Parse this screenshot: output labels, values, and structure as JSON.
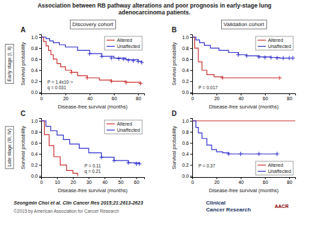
{
  "title": "Association between RB pathway alterations and poor prognosis in early-stage lung\nadenocarcinoma patients.",
  "column_labels": [
    "Discovery cohort",
    "Validation cohort"
  ],
  "row_labels": [
    "Early stage (I, II)",
    "Late stage (III, IV)"
  ],
  "annotations": [
    "Seongmin Choi et al. Clin Cancer Res 2015;21:2613-2623",
    "©2015 by American Association for Cancer Research",
    "Clinical\nCancer Research",
    "AACR"
  ],
  "chart_data": [
    {
      "type": "line",
      "title": "A",
      "xlabel": "Disease-free survival (months)",
      "ylabel": "Survival probability",
      "annotations": [
        "P = 1.4x10⁻³\nq = 0.031"
      ],
      "legend": "upper right",
      "xlim": [
        0,
        85
      ],
      "ylim": [
        -0.02,
        1.05
      ],
      "xticks": [
        0,
        20,
        40,
        60,
        80
      ],
      "yticks": [
        {
          "value": 0.0,
          "label": "0.0"
        },
        0.2,
        0.4,
        0.6,
        0.8,
        {
          "value": 1.0,
          "label": "1.0"
        }
      ],
      "series": [
        {
          "name": "Altered",
          "color": "#cc3333",
          "line_style": "step",
          "x": [
            0,
            2,
            4,
            6,
            8,
            10,
            13,
            16,
            20,
            25,
            30,
            38,
            48,
            58,
            70,
            82
          ],
          "values": [
            1.0,
            0.92,
            0.84,
            0.76,
            0.68,
            0.6,
            0.52,
            0.46,
            0.4,
            0.36,
            0.3,
            0.26,
            0.22,
            0.2,
            0.18,
            0.16
          ],
          "censor_x": [
            25,
            38,
            58,
            70,
            82
          ],
          "censor_values": [
            0.36,
            0.26,
            0.2,
            0.18,
            0.16
          ]
        },
        {
          "name": "Unaffected",
          "color": "#3333cc",
          "line_style": "step",
          "x": [
            0,
            4,
            7,
            10,
            15,
            20,
            30,
            40,
            50,
            60,
            70,
            80,
            83
          ],
          "values": [
            1.0,
            0.97,
            0.93,
            0.9,
            0.86,
            0.82,
            0.76,
            0.7,
            0.65,
            0.62,
            0.59,
            0.56,
            0.54
          ],
          "censor_x": [
            40,
            50,
            58,
            64,
            68,
            72,
            76,
            80,
            83
          ],
          "censor_values": [
            0.7,
            0.65,
            0.62,
            0.61,
            0.6,
            0.58,
            0.57,
            0.56,
            0.54
          ]
        }
      ]
    },
    {
      "type": "line",
      "title": "B",
      "xlabel": "Disease-free survival (months)",
      "ylabel": "Survival probability",
      "annotations": [
        "P = 0.017"
      ],
      "legend": "upper right",
      "xlim": [
        0,
        85
      ],
      "ylim": [
        -0.02,
        1.05
      ],
      "xticks": [
        0,
        20,
        40,
        60,
        80
      ],
      "yticks": [
        {
          "value": 0.0,
          "label": "0.0"
        },
        0.2,
        0.4,
        0.6,
        0.8,
        {
          "value": 1.0,
          "label": "1.0"
        }
      ],
      "series": [
        {
          "name": "Altered",
          "color": "#cc3333",
          "line_style": "step",
          "x": [
            0,
            2,
            5,
            8,
            12,
            18,
            25,
            65,
            72
          ],
          "values": [
            1.0,
            0.8,
            0.55,
            0.4,
            0.32,
            0.28,
            0.26,
            0.26,
            0.26
          ],
          "censor_x": [
            25,
            72
          ],
          "censor_values": [
            0.26,
            0.26
          ]
        },
        {
          "name": "Unaffected",
          "color": "#3333cc",
          "line_style": "step",
          "x": [
            0,
            3,
            6,
            10,
            15,
            22,
            30,
            38,
            45,
            55,
            65,
            72,
            80,
            83
          ],
          "values": [
            1.0,
            0.95,
            0.9,
            0.85,
            0.8,
            0.76,
            0.72,
            0.68,
            0.66,
            0.64,
            0.63,
            0.62,
            0.62,
            0.62
          ],
          "censor_x": [
            38,
            45,
            55,
            60,
            65,
            70,
            75,
            80,
            83
          ],
          "censor_values": [
            0.68,
            0.66,
            0.64,
            0.63,
            0.63,
            0.62,
            0.62,
            0.62,
            0.62
          ]
        }
      ]
    },
    {
      "type": "line",
      "title": "C",
      "xlabel": "Disease-free survival (months)",
      "ylabel": "Survival probability",
      "annotations": [
        "P = 0.11\nq = 0.21"
      ],
      "legend": "upper right",
      "xlim": [
        0,
        65
      ],
      "ylim": [
        -0.02,
        1.05
      ],
      "xticks": [
        0,
        10,
        20,
        30,
        40,
        50,
        60
      ],
      "yticks": [
        {
          "value": 0.0,
          "label": "0.0"
        },
        0.2,
        0.4,
        0.6,
        0.8,
        {
          "value": 1.0,
          "label": "1.0"
        }
      ],
      "series": [
        {
          "name": "Altered",
          "color": "#cc3333",
          "line_style": "step",
          "x": [
            0,
            2,
            5,
            8,
            12,
            16,
            20,
            23
          ],
          "values": [
            1.0,
            0.75,
            0.55,
            0.35,
            0.2,
            0.1,
            0.05,
            0.0
          ],
          "censor_x": [],
          "censor_values": []
        },
        {
          "name": "Unaffected",
          "color": "#3333cc",
          "line_style": "step",
          "x": [
            0,
            3,
            6,
            10,
            14,
            18,
            24,
            30,
            38,
            46,
            55,
            62
          ],
          "values": [
            1.0,
            0.9,
            0.82,
            0.74,
            0.66,
            0.58,
            0.5,
            0.42,
            0.34,
            0.28,
            0.24,
            0.22
          ],
          "censor_x": [
            38,
            46,
            55,
            60,
            62
          ],
          "censor_values": [
            0.34,
            0.28,
            0.24,
            0.22,
            0.22
          ]
        }
      ]
    },
    {
      "type": "line",
      "title": "D",
      "xlabel": "Disease-free survival (months)",
      "ylabel": "Survival probability",
      "annotations": [
        "P = 0.37"
      ],
      "legend": "lower right",
      "xlim": [
        0,
        85
      ],
      "ylim": [
        -0.02,
        1.05
      ],
      "xticks": [
        0,
        20,
        40,
        60,
        80
      ],
      "yticks": [
        {
          "value": 0.0,
          "label": "0.0"
        },
        0.2,
        0.4,
        0.6,
        0.8,
        {
          "value": 1.0,
          "label": "1.0"
        }
      ],
      "series": [
        {
          "name": "Altered",
          "color": "#cc3333",
          "line_style": "step",
          "x": [
            0,
            85
          ],
          "values": [
            1.0,
            1.0
          ],
          "censor_x": [],
          "censor_values": []
        },
        {
          "name": "Unaffected",
          "color": "#3333cc",
          "line_style": "step",
          "x": [
            0,
            3,
            5,
            8,
            12,
            16,
            20,
            25,
            30,
            40,
            55,
            70
          ],
          "values": [
            1.0,
            0.88,
            0.78,
            0.68,
            0.56,
            0.48,
            0.44,
            0.42,
            0.4,
            0.4,
            0.4,
            0.4
          ],
          "censor_x": [
            30,
            40,
            55,
            70
          ],
          "censor_values": [
            0.4,
            0.4,
            0.4,
            0.4
          ]
        }
      ]
    }
  ]
}
